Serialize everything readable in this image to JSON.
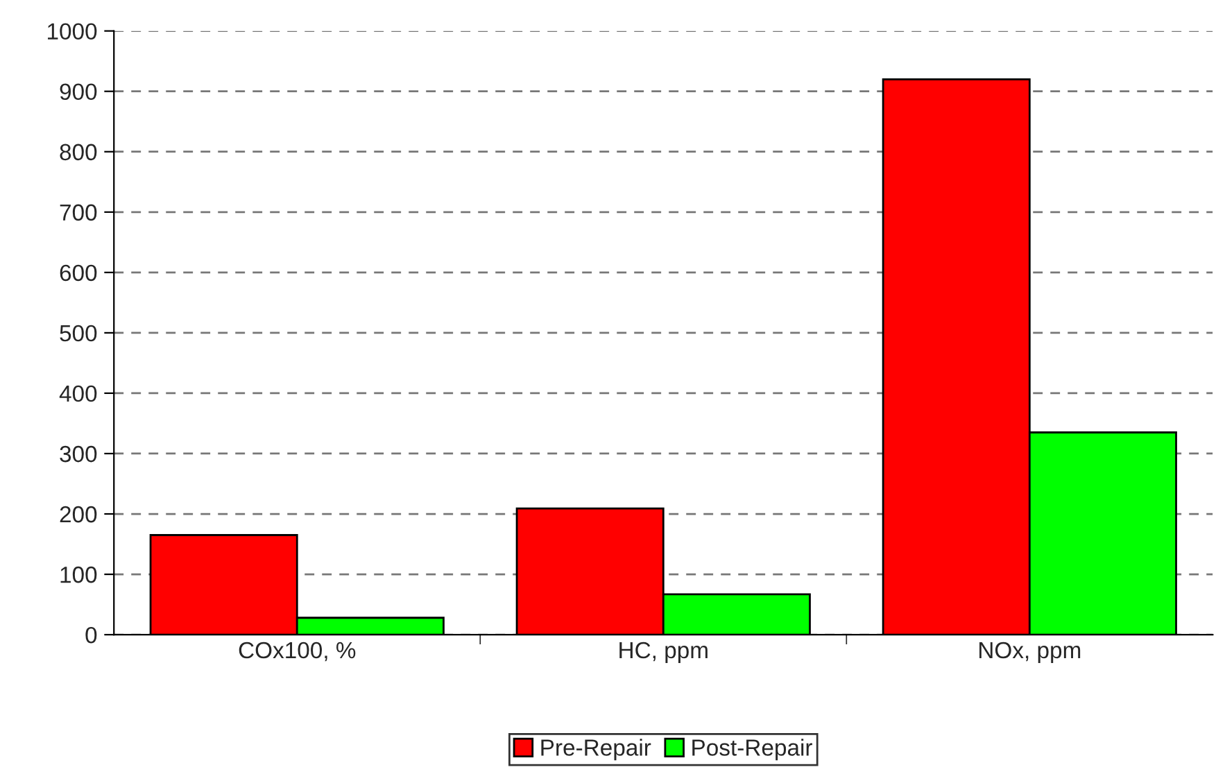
{
  "chart_data": {
    "type": "bar",
    "categories": [
      "COx100, %",
      "HC, ppm",
      "NOx, ppm"
    ],
    "series": [
      {
        "name": "Pre-Repair",
        "color": "#ff0000",
        "values": [
          165,
          209,
          920
        ]
      },
      {
        "name": "Post-Repair",
        "color": "#00ff00",
        "values": [
          28,
          67,
          335
        ]
      }
    ],
    "ylim": [
      0,
      1000
    ],
    "yticks": [
      0,
      100,
      200,
      300,
      400,
      500,
      600,
      700,
      800,
      900,
      1000
    ],
    "grid": "y",
    "legend": "bottom"
  }
}
